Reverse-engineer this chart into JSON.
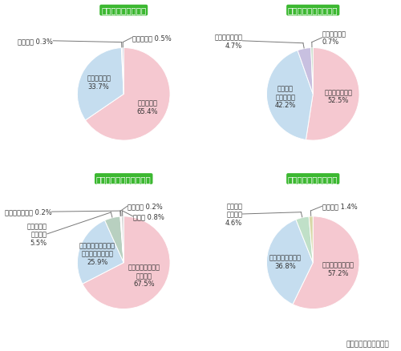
{
  "charts": [
    {
      "title": "地球温暖化への関心",
      "values": [
        65.4,
        33.7,
        0.3,
        0.5
      ],
      "colors": [
        "#f5c8d0",
        "#c5ddef",
        "#c8e8c0",
        "#c8c8d8"
      ],
      "inside_labels": [
        {
          "idx": 0,
          "text": "とてもある\n65.4%",
          "r": 0.58,
          "ha": "center",
          "va": "center"
        },
        {
          "idx": 1,
          "text": "まあまあある\n33.7%",
          "r": 0.6,
          "ha": "center",
          "va": "center"
        }
      ],
      "outside_labels": [
        {
          "idx": 2,
          "text": "全くない 0.3%",
          "ha": "right",
          "va": "center",
          "xt": -1.52,
          "yt": 1.15
        },
        {
          "idx": 3,
          "text": "あまりない 0.5%",
          "ha": "left",
          "va": "center",
          "xt": 0.18,
          "yt": 1.22
        }
      ]
    },
    {
      "title": "エネルギー問題の認識",
      "values": [
        52.5,
        42.2,
        4.7,
        0.7
      ],
      "colors": [
        "#f5c8d0",
        "#c5ddef",
        "#c8c0e0",
        "#c0d8c0"
      ],
      "inside_labels": [
        {
          "idx": 0,
          "text": "よく知っている\n52.5%",
          "r": 0.55,
          "ha": "center",
          "va": "center"
        },
        {
          "idx": 1,
          "text": "まあまあ\n知っている\n42.2%",
          "r": 0.6,
          "ha": "center",
          "va": "center"
        }
      ],
      "outside_labels": [
        {
          "idx": 2,
          "text": "あまり知らない\n4.7%",
          "ha": "right",
          "va": "center",
          "xt": -1.52,
          "yt": 1.15
        },
        {
          "idx": 3,
          "text": "全く知らない\n0.7%",
          "ha": "left",
          "va": "center",
          "xt": 0.2,
          "yt": 1.22
        }
      ]
    },
    {
      "title": "市は積極的に取組むべき",
      "values": [
        67.5,
        25.9,
        5.5,
        0.2,
        0.2,
        0.8
      ],
      "colors": [
        "#f5c8d0",
        "#c5ddef",
        "#b8d0c0",
        "#c0c0d8",
        "#e8d8b8",
        "#d8d8d8"
      ],
      "inside_labels": [
        {
          "idx": 0,
          "text": "経済性を見ながら\n行うべき\n67.5%",
          "r": 0.52,
          "ha": "center",
          "va": "center"
        },
        {
          "idx": 1,
          "text": "コストはかかっても\n積極的に行うべき\n25.9%",
          "r": 0.6,
          "ha": "center",
          "va": "center"
        }
      ],
      "outside_labels": [
        {
          "idx": 2,
          "text": "他の地域に\n合わせる\n5.5%",
          "ha": "right",
          "va": "center",
          "xt": -1.65,
          "yt": 0.62
        },
        {
          "idx": 3,
          "text": "民間にまかせる 0.2%",
          "ha": "right",
          "va": "center",
          "xt": -1.55,
          "yt": 1.1
        },
        {
          "idx": 4,
          "text": "必要ない 0.2%",
          "ha": "left",
          "va": "center",
          "xt": 0.08,
          "yt": 1.22
        },
        {
          "idx": 5,
          "text": "その他 0.8%",
          "ha": "left",
          "va": "center",
          "xt": 0.2,
          "yt": 1.0
        }
      ]
    },
    {
      "title": "新エネルギーへの関心",
      "values": [
        57.2,
        36.8,
        4.6,
        1.4
      ],
      "colors": [
        "#f5c8d0",
        "#c5ddef",
        "#c0e0c8",
        "#d8d8a8"
      ],
      "inside_labels": [
        {
          "idx": 0,
          "text": "内容も知っている\n57.2%",
          "r": 0.55,
          "ha": "center",
          "va": "center"
        },
        {
          "idx": 1,
          "text": "名前は知っている\n36.8%",
          "r": 0.6,
          "ha": "center",
          "va": "center"
        }
      ],
      "outside_labels": [
        {
          "idx": 2,
          "text": "既に使用\nしている\n4.6%",
          "ha": "right",
          "va": "center",
          "xt": -1.52,
          "yt": 1.05
        },
        {
          "idx": 3,
          "text": "知らない 1.4%",
          "ha": "left",
          "va": "center",
          "xt": 0.2,
          "yt": 1.22
        }
      ]
    }
  ],
  "title_bg_color": "#3cb831",
  "title_text_color": "#ffffff",
  "bg_color": "#ffffff",
  "footer": "（太陽光発電の場合）",
  "label_fontsize": 6.0,
  "title_fontsize": 7.5
}
